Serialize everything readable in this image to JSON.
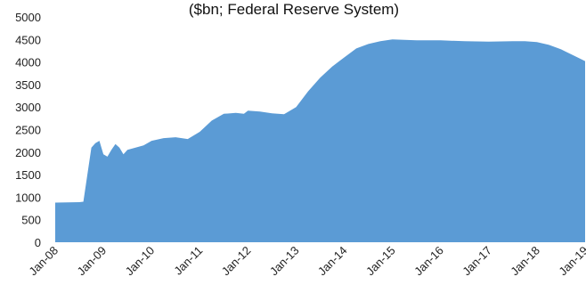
{
  "chart_data": {
    "type": "area",
    "title": "($bn; Federal Reserve System)",
    "xlabel": "",
    "ylabel": "",
    "ylim": [
      0,
      5000
    ],
    "yticks": [
      "0",
      "500",
      "1000",
      "1500",
      "2000",
      "2500",
      "3000",
      "3500",
      "4000",
      "4500",
      "5000"
    ],
    "xticks": [
      "Jan-08",
      "Jan-09",
      "Jan-10",
      "Jan-11",
      "Jan-12",
      "Jan-13",
      "Jan-14",
      "Jan-15",
      "Jan-16",
      "Jan-17",
      "Jan-18",
      "Jan-19"
    ],
    "grid": false,
    "legend": "none",
    "color": "#5b9bd5",
    "series": [
      {
        "x": [
          "Jan-08",
          "Jul-08",
          "Aug-08",
          "Sep-08",
          "Oct-08",
          "Nov-08",
          "Dec-08",
          "Jan-09",
          "Feb-09",
          "Mar-09",
          "Apr-09",
          "May-09",
          "Jun-09",
          "Jul-09",
          "Sep-09",
          "Nov-09",
          "Jan-10",
          "Apr-10",
          "Jul-10",
          "Oct-10",
          "Jan-11",
          "Apr-11",
          "Jul-11",
          "Oct-11",
          "Dec-11",
          "Jan-12",
          "Apr-12",
          "Jul-12",
          "Oct-12",
          "Jan-13",
          "Apr-13",
          "Jul-13",
          "Oct-13",
          "Jan-14",
          "Apr-14",
          "Jul-14",
          "Oct-14",
          "Jan-15",
          "Jul-15",
          "Jan-16",
          "Jul-16",
          "Jan-17",
          "Jul-17",
          "Oct-17",
          "Jan-18",
          "Apr-18",
          "Jul-18",
          "Oct-18",
          "Jan-19"
        ],
        "values": [
          880,
          890,
          900,
          1500,
          2100,
          2200,
          2250,
          1950,
          1900,
          2050,
          2180,
          2100,
          1950,
          2050,
          2100,
          2150,
          2250,
          2310,
          2330,
          2290,
          2450,
          2700,
          2850,
          2870,
          2850,
          2920,
          2900,
          2860,
          2840,
          3000,
          3350,
          3650,
          3900,
          4100,
          4300,
          4400,
          4460,
          4500,
          4480,
          4480,
          4460,
          4450,
          4460,
          4460,
          4440,
          4380,
          4280,
          4150,
          4020
        ]
      }
    ]
  }
}
